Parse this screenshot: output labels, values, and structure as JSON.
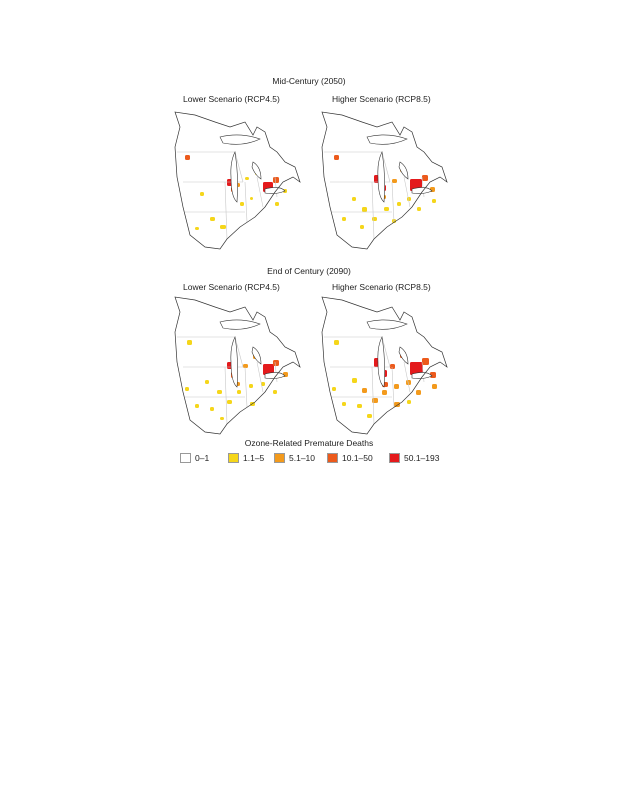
{
  "figure": {
    "sections": [
      {
        "title": "Mid-Century (2050)",
        "panels": [
          {
            "label": "Lower Scenario (RCP4.5)",
            "hotspots": "mid_lower"
          },
          {
            "label": "Higher Scenario (RCP8.5)",
            "hotspots": "mid_higher"
          }
        ]
      },
      {
        "title": "End of Century (2090)",
        "panels": [
          {
            "label": "Lower Scenario (RCP4.5)",
            "hotspots": "end_lower"
          },
          {
            "label": "Higher Scenario (RCP8.5)",
            "hotspots": "end_higher"
          }
        ]
      }
    ]
  },
  "legend": {
    "title": "Ozone-Related Premature Deaths",
    "items": [
      {
        "label": "0–1",
        "color": "#ffffff"
      },
      {
        "label": "1.1–5",
        "color": "#f5d61a"
      },
      {
        "label": "5.1–10",
        "color": "#f39a1c"
      },
      {
        "label": "10.1–50",
        "color": "#ec5a1c"
      },
      {
        "label": "50.1–193",
        "color": "#e41a1c"
      }
    ]
  },
  "colors": {
    "outline": "#333333",
    "state_line": "#c8c8c8",
    "lake_fill": "#ffffff"
  }
}
